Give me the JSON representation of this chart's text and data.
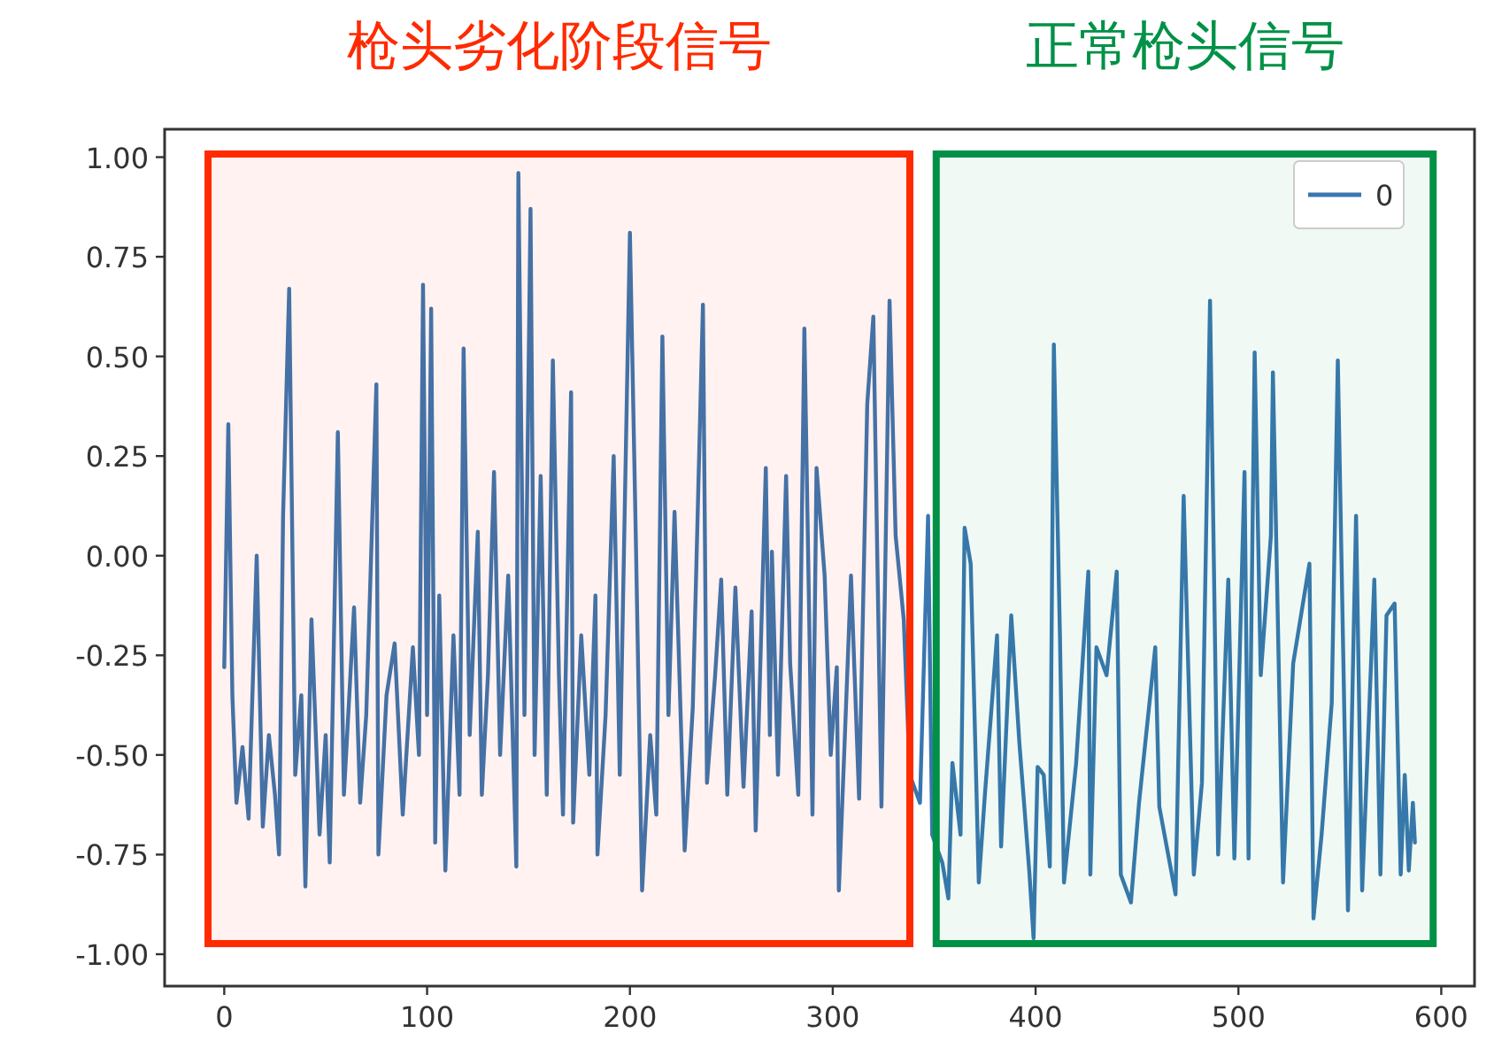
{
  "chart_data": {
    "type": "line",
    "x": [
      0,
      2,
      4,
      6,
      9,
      12,
      16,
      19,
      22,
      25,
      27,
      29,
      32,
      35,
      38,
      40,
      43,
      47,
      50,
      52,
      56,
      59,
      64,
      67,
      70,
      75,
      76,
      80,
      84,
      88,
      93,
      96,
      98,
      100,
      102,
      104,
      106,
      109,
      113,
      116,
      118,
      121,
      125,
      127,
      130,
      133,
      136,
      140,
      144,
      145,
      148,
      151,
      153,
      156,
      159,
      162,
      165,
      167,
      171,
      172,
      176,
      180,
      183,
      184,
      188,
      192,
      195,
      200,
      203,
      206,
      210,
      213,
      216,
      219,
      222,
      227,
      231,
      236,
      238,
      242,
      245,
      248,
      252,
      256,
      260,
      262,
      267,
      269,
      270,
      273,
      277,
      279,
      283,
      286,
      290,
      292,
      296,
      299,
      302,
      303,
      306,
      309,
      313,
      317,
      320,
      324,
      328,
      331,
      335,
      338,
      343,
      347,
      349,
      354,
      357,
      359,
      363,
      365,
      368,
      372,
      375,
      381,
      383,
      388,
      392,
      394,
      397,
      399,
      401,
      404,
      407,
      409,
      412,
      414,
      420,
      426,
      427,
      430,
      435,
      440,
      442,
      447,
      451,
      459,
      461,
      469,
      473,
      478,
      482,
      486,
      490,
      495,
      498,
      503,
      505,
      508,
      511,
      516,
      517,
      522,
      527,
      535,
      537,
      541,
      546,
      549,
      554,
      558,
      561,
      567,
      570,
      573,
      577,
      580,
      582,
      584,
      586,
      587
    ],
    "series": [
      {
        "name": "0",
        "color": "#3a76b0",
        "values": [
          -0.28,
          0.33,
          -0.35,
          -0.62,
          -0.48,
          -0.66,
          0.0,
          -0.68,
          -0.45,
          -0.6,
          -0.75,
          0.1,
          0.67,
          -0.55,
          -0.35,
          -0.83,
          -0.16,
          -0.7,
          -0.45,
          -0.77,
          0.31,
          -0.6,
          -0.13,
          -0.62,
          -0.4,
          0.43,
          -0.75,
          -0.35,
          -0.22,
          -0.65,
          -0.23,
          -0.5,
          0.68,
          -0.4,
          0.62,
          -0.72,
          -0.1,
          -0.79,
          -0.2,
          -0.6,
          0.52,
          -0.45,
          0.06,
          -0.6,
          -0.3,
          0.21,
          -0.5,
          -0.05,
          -0.78,
          0.96,
          -0.4,
          0.87,
          -0.5,
          0.2,
          -0.6,
          0.49,
          -0.3,
          -0.65,
          0.41,
          -0.67,
          -0.2,
          -0.55,
          -0.1,
          -0.75,
          -0.4,
          0.25,
          -0.55,
          0.81,
          0.02,
          -0.84,
          -0.45,
          -0.65,
          0.55,
          -0.4,
          0.11,
          -0.74,
          -0.38,
          0.63,
          -0.57,
          -0.3,
          -0.06,
          -0.6,
          -0.08,
          -0.58,
          -0.14,
          -0.69,
          0.22,
          -0.45,
          0.01,
          -0.55,
          0.2,
          -0.27,
          -0.6,
          0.57,
          -0.65,
          0.22,
          -0.05,
          -0.5,
          -0.28,
          -0.84,
          -0.45,
          -0.05,
          -0.61,
          0.38,
          0.6,
          -0.63,
          0.64,
          0.05,
          -0.16,
          -0.55,
          -0.62,
          0.1,
          -0.7,
          -0.77,
          -0.86,
          -0.52,
          -0.7,
          0.07,
          -0.02,
          -0.82,
          -0.6,
          -0.2,
          -0.73,
          -0.15,
          -0.47,
          -0.6,
          -0.8,
          -0.96,
          -0.53,
          -0.55,
          -0.78,
          0.53,
          -0.2,
          -0.82,
          -0.52,
          -0.04,
          -0.8,
          -0.23,
          -0.3,
          -0.04,
          -0.8,
          -0.87,
          -0.62,
          -0.23,
          -0.63,
          -0.85,
          0.15,
          -0.8,
          -0.57,
          0.64,
          -0.75,
          -0.06,
          -0.76,
          0.21,
          -0.76,
          0.51,
          -0.3,
          0.05,
          0.46,
          -0.82,
          -0.27,
          -0.02,
          -0.91,
          -0.7,
          -0.37,
          0.49,
          -0.89,
          0.1,
          -0.84,
          -0.06,
          -0.8,
          -0.15,
          -0.12,
          -0.8,
          -0.55,
          -0.79,
          -0.62,
          -0.72
        ]
      }
    ],
    "xlim": [
      -29.4,
      616.4
    ],
    "ylim": [
      -1.08,
      1.07
    ],
    "xticks": [
      0,
      100,
      200,
      300,
      400,
      500,
      600
    ],
    "yticks": [
      {
        "value": 1,
        "label": "1.00"
      },
      {
        "value": 0.75,
        "label": "0.75"
      },
      {
        "value": 0.5,
        "label": "0.50"
      },
      {
        "value": 0.25,
        "label": "0.25"
      },
      {
        "value": 0,
        "label": "0.00"
      },
      {
        "value": -0.25,
        "label": "-0.25"
      },
      {
        "value": -0.5,
        "label": "-0.50"
      },
      {
        "value": -0.75,
        "label": "-0.75"
      },
      {
        "value": -1,
        "label": "-1.00"
      }
    ],
    "legend": "top right",
    "bands": [
      {
        "axis": "x",
        "from": -8,
        "to": 338,
        "label": "枪头劣化阶段信号",
        "color": "#ff2a00"
      },
      {
        "axis": "x",
        "from": 351,
        "to": 596,
        "label": "正常枪头信号",
        "color": "#009146"
      }
    ]
  }
}
